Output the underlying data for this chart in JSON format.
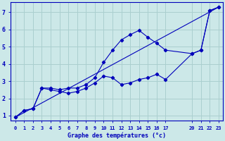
{
  "xlabel": "Graphe des températures (°c)",
  "bg_color": "#cce8e8",
  "grid_color": "#aacfcf",
  "line_color": "#0000bb",
  "xlim": [
    -0.5,
    23.5
  ],
  "ylim": [
    0.7,
    7.6
  ],
  "xticks": [
    0,
    1,
    2,
    3,
    4,
    5,
    6,
    7,
    8,
    9,
    10,
    11,
    12,
    13,
    14,
    15,
    16,
    17,
    20,
    21,
    22,
    23
  ],
  "yticks": [
    1,
    2,
    3,
    4,
    5,
    6,
    7
  ],
  "line1_x": [
    0,
    1,
    2,
    3,
    4,
    5,
    6,
    7,
    8,
    9,
    10,
    11,
    12,
    13,
    14,
    15,
    16,
    17,
    20,
    21,
    22,
    23
  ],
  "line1_y": [
    0.9,
    1.3,
    1.4,
    2.6,
    2.6,
    2.5,
    2.6,
    2.6,
    2.8,
    3.2,
    4.1,
    4.8,
    5.4,
    5.7,
    5.95,
    5.55,
    5.2,
    4.8,
    4.6,
    4.8,
    7.1,
    7.3
  ],
  "line2_x": [
    0,
    1,
    2,
    3,
    4,
    5,
    6,
    7,
    8,
    9,
    10,
    11,
    12,
    13,
    14,
    15,
    16,
    17,
    20,
    21,
    22,
    23
  ],
  "line2_y": [
    0.9,
    1.3,
    1.4,
    2.6,
    2.5,
    2.4,
    2.3,
    2.4,
    2.6,
    2.9,
    3.3,
    3.2,
    2.8,
    2.9,
    3.1,
    3.2,
    3.4,
    3.1,
    4.6,
    4.8,
    7.1,
    7.3
  ],
  "line3_x": [
    0,
    23
  ],
  "line3_y": [
    0.9,
    7.3
  ]
}
